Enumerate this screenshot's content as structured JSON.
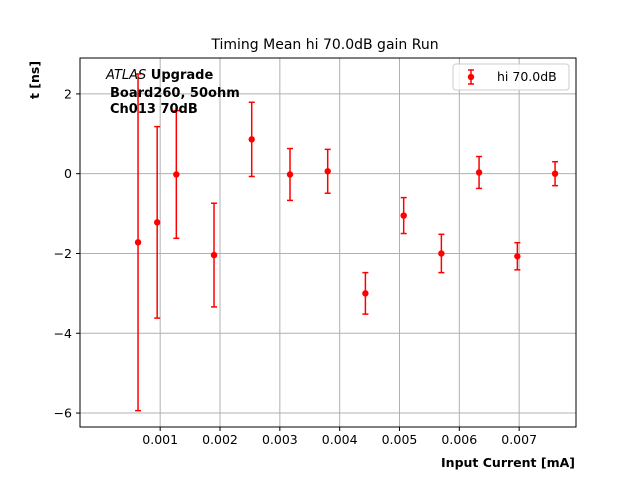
{
  "chart_data": {
    "type": "scatter",
    "title": "Timing Mean hi 70.0dB gain Run",
    "xlabel": "Input Current [mA]",
    "ylabel": "t [ns]",
    "xlim": [
      -0.00034,
      0.00795
    ],
    "ylim": [
      -6.35,
      2.9
    ],
    "grid": true,
    "legend_position": "top-right",
    "x_ticks": [
      0.001,
      0.002,
      0.003,
      0.004,
      0.005,
      0.006,
      0.007
    ],
    "x_tick_labels": [
      "0.001",
      "0.002",
      "0.003",
      "0.004",
      "0.005",
      "0.006",
      "0.007"
    ],
    "y_ticks": [
      -6,
      -4,
      -2,
      0,
      2
    ],
    "y_tick_labels": [
      "−6",
      "−4",
      "−2",
      "0",
      "2"
    ],
    "annotation": {
      "line1_italic": "ATLAS",
      "line1_bold": " Upgrade",
      "line2": "Board260, 50ohm",
      "line3": "Ch013 70dB"
    },
    "series": [
      {
        "name": "hi 70.0dB",
        "color": "#ff0000",
        "marker": "circle",
        "points": [
          {
            "x": 0.00063,
            "y": -1.72,
            "err": 4.22
          },
          {
            "x": 0.00095,
            "y": -1.22,
            "err": 2.4
          },
          {
            "x": 0.00127,
            "y": -0.02,
            "err": 1.6
          },
          {
            "x": 0.0019,
            "y": -2.04,
            "err": 1.3
          },
          {
            "x": 0.00253,
            "y": 0.86,
            "err": 0.93
          },
          {
            "x": 0.00317,
            "y": -0.02,
            "err": 0.65
          },
          {
            "x": 0.0038,
            "y": 0.06,
            "err": 0.55
          },
          {
            "x": 0.00443,
            "y": -3.0,
            "err": 0.52
          },
          {
            "x": 0.00507,
            "y": -1.05,
            "err": 0.45
          },
          {
            "x": 0.0057,
            "y": -2.0,
            "err": 0.48
          },
          {
            "x": 0.00633,
            "y": 0.03,
            "err": 0.4
          },
          {
            "x": 0.00697,
            "y": -2.07,
            "err": 0.34
          },
          {
            "x": 0.0076,
            "y": 0.0,
            "err": 0.3
          }
        ]
      }
    ]
  }
}
